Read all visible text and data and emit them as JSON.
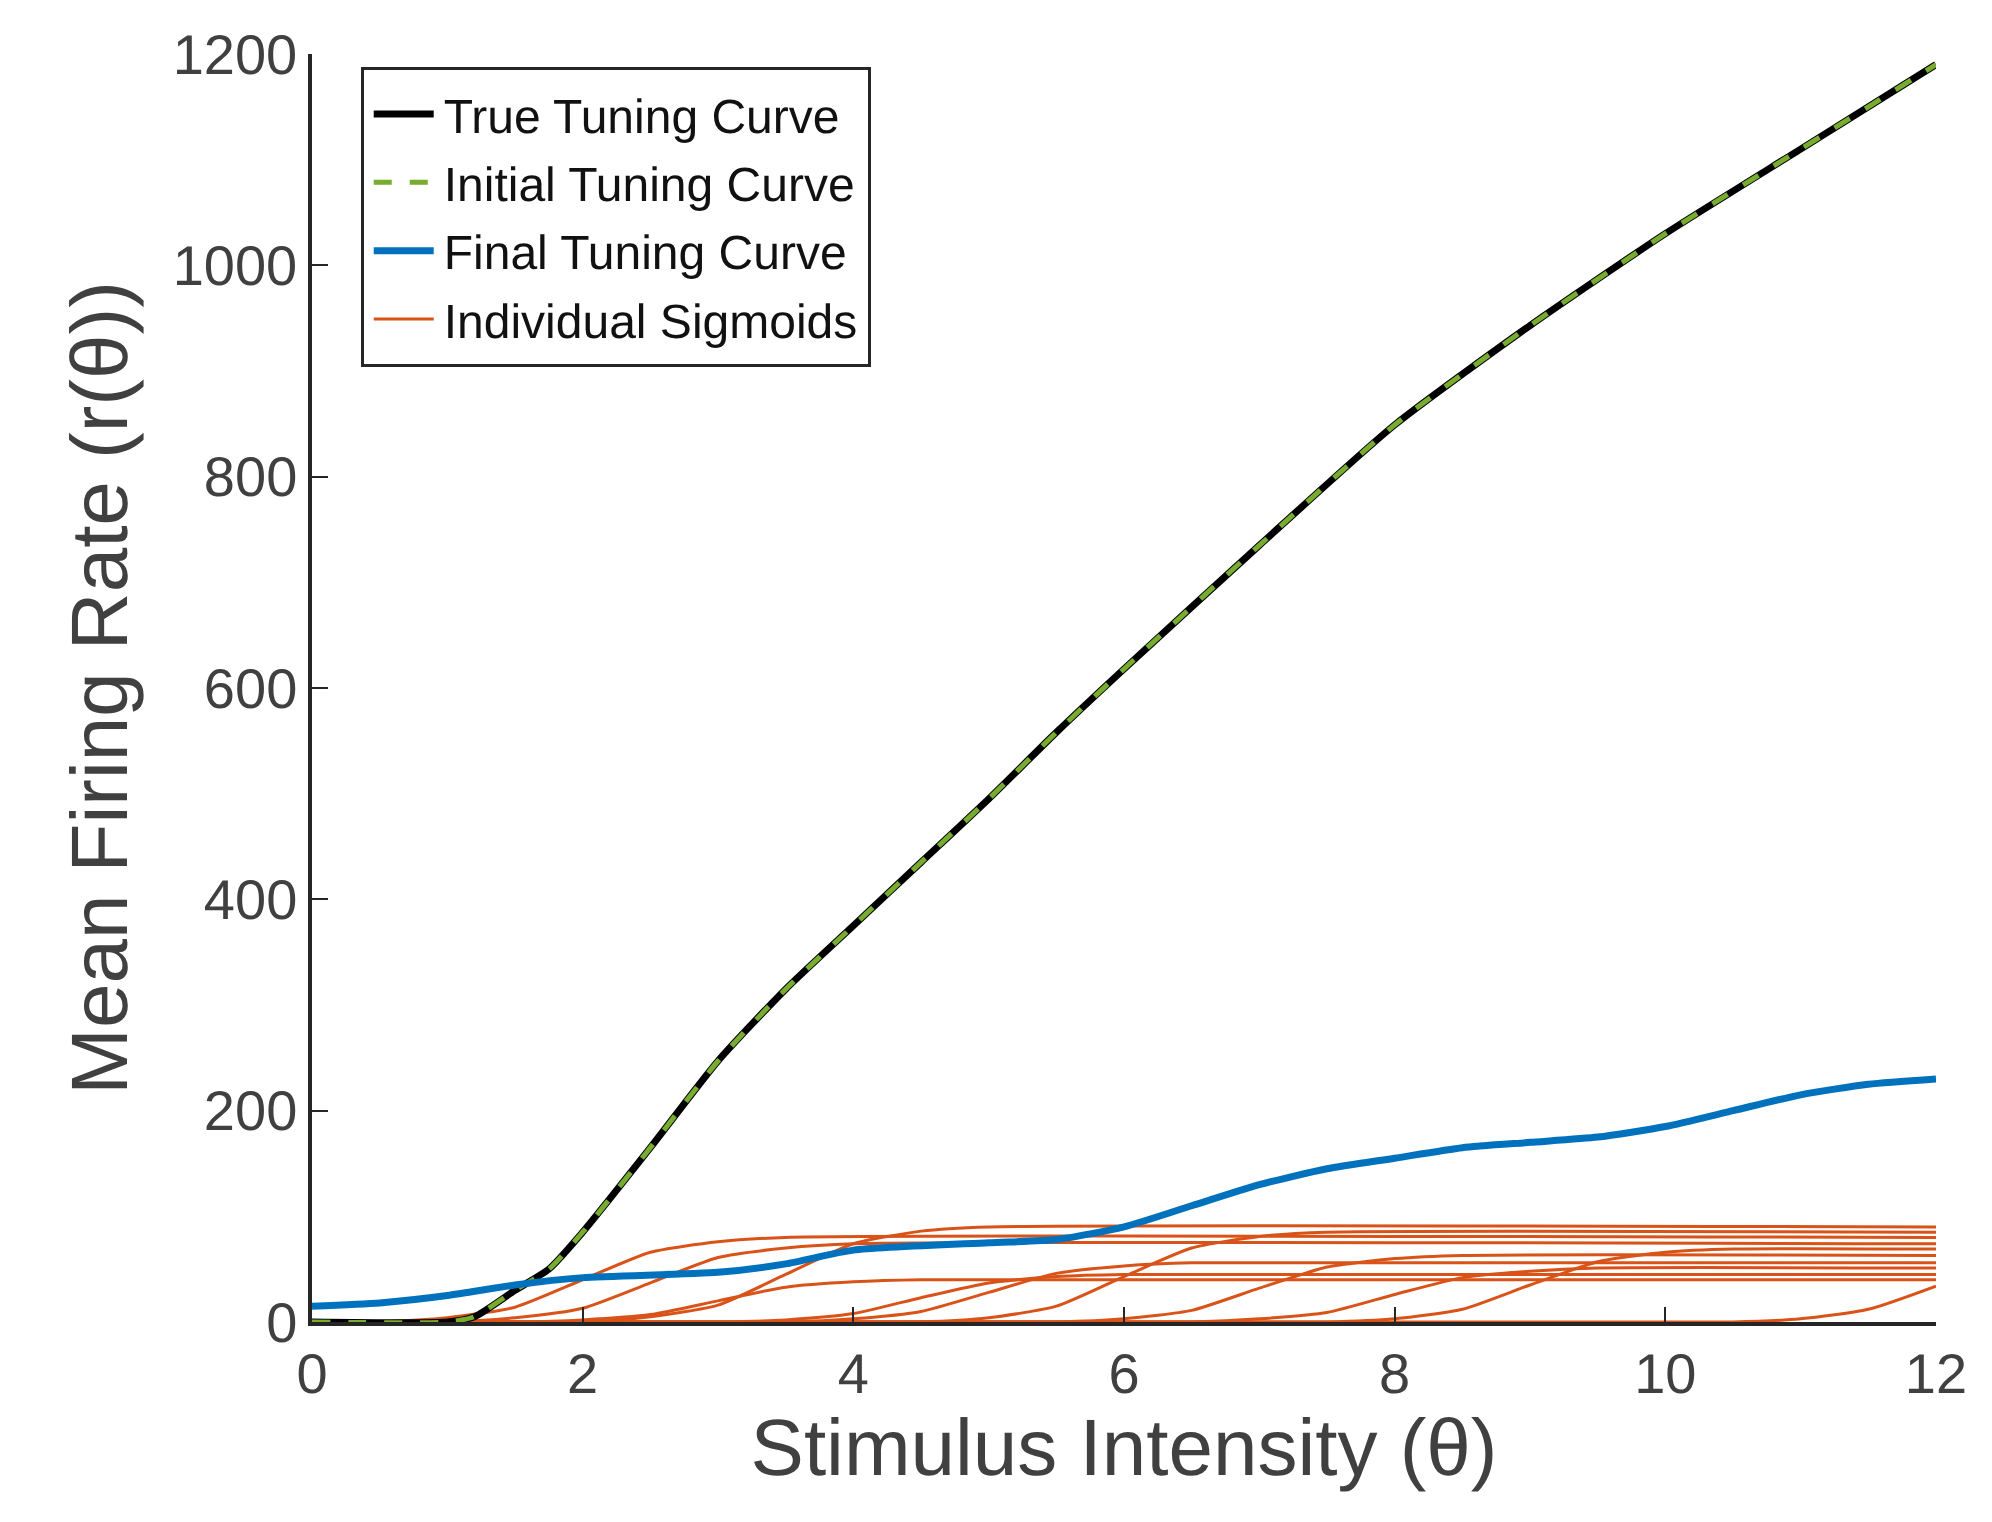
{
  "chart_data": {
    "type": "line",
    "xlabel": "Stimulus Intensity (θ)",
    "ylabel": "Mean Firing Rate (r(θ))",
    "xlim": [
      0,
      12
    ],
    "xticks": [
      0,
      2,
      4,
      6,
      8,
      10,
      12
    ],
    "ylim": [
      0,
      1200
    ],
    "yticks": [
      0,
      200,
      400,
      600,
      800,
      1000,
      1200
    ],
    "legend": "top left",
    "marker": "none",
    "series": [
      {
        "name": "True Tuning Curve",
        "color": "#000000",
        "line_style": "solid",
        "x": [
          0,
          1,
          1.2,
          1.5,
          1.75,
          2,
          2.5,
          3,
          3.5,
          4,
          4.5,
          5,
          5.5,
          6,
          7,
          8,
          9,
          10,
          11,
          12
        ],
        "values": [
          0,
          0,
          5,
          30,
          50,
          85,
          165,
          247,
          315,
          375,
          435,
          495,
          558,
          618,
          735,
          849,
          943,
          1030,
          1110,
          1190
        ]
      },
      {
        "name": "Initial Tuning Curve",
        "color": "#77ac30",
        "line_style": "dashed",
        "x": [
          0,
          1,
          1.2,
          1.5,
          1.75,
          2,
          2.5,
          3,
          3.5,
          4,
          4.5,
          5,
          5.5,
          6,
          7,
          8,
          9,
          10,
          11,
          12
        ],
        "values": [
          0,
          0,
          5,
          30,
          50,
          85,
          165,
          247,
          315,
          375,
          435,
          495,
          558,
          618,
          735,
          849,
          943,
          1030,
          1110,
          1190
        ]
      },
      {
        "name": "Final Tuning Curve",
        "color": "#0072bd",
        "line_style": "solid",
        "x": [
          0,
          0.5,
          1,
          1.5,
          2,
          3,
          3.5,
          4,
          5,
          5.5,
          6,
          6.5,
          7,
          7.5,
          8,
          8.5,
          9,
          9.5,
          10,
          10.5,
          11,
          11.5,
          12
        ],
        "values": [
          15,
          18,
          25,
          35,
          42,
          47,
          55,
          68,
          75,
          78,
          90,
          110,
          130,
          145,
          155,
          165,
          170,
          175,
          185,
          200,
          215,
          225,
          230
        ]
      },
      {
        "name": "Individual Sigmoids",
        "color": "#d95319",
        "x": [
          0,
          0.5,
          1,
          1.5,
          2,
          2.5,
          3,
          3.5,
          12
        ],
        "values": [
          0,
          0,
          4,
          14,
          40,
          66,
          76,
          80,
          80
        ]
      },
      {
        "color": "#d95319",
        "x": [
          0,
          1,
          1.5,
          2,
          2.5,
          3,
          3.5,
          4,
          12
        ],
        "values": [
          0,
          0,
          4,
          13,
          37,
          61,
          70,
          74,
          74
        ]
      },
      {
        "color": "#d95319",
        "x": [
          0,
          1.5,
          2,
          2.5,
          3,
          3.5,
          4,
          4.5,
          12
        ],
        "values": [
          0,
          0,
          2,
          7,
          20,
          33,
          38,
          40,
          40
        ]
      },
      {
        "color": "#d95319",
        "x": [
          0,
          2,
          2.5,
          3,
          3.5,
          4,
          4.5,
          5,
          12
        ],
        "values": [
          0,
          0,
          5,
          16,
          45,
          74,
          86,
          90,
          90
        ]
      },
      {
        "color": "#d95319",
        "x": [
          0,
          3,
          3.5,
          4,
          4.5,
          5,
          5.5,
          6,
          12
        ],
        "values": [
          0,
          0,
          2,
          8,
          23,
          37,
          43,
          45,
          45
        ]
      },
      {
        "color": "#d95319",
        "x": [
          0,
          3.5,
          4,
          4.5,
          5,
          5.5,
          6,
          6.5,
          12
        ],
        "values": [
          0,
          0,
          3,
          10,
          28,
          46,
          53,
          56,
          56
        ]
      },
      {
        "color": "#d95319",
        "x": [
          0,
          4.5,
          5,
          5.5,
          6,
          6.5,
          7,
          7.5,
          12
        ],
        "values": [
          0,
          0,
          4,
          15,
          43,
          70,
          81,
          85,
          85
        ]
      },
      {
        "color": "#d95319",
        "x": [
          0,
          5.5,
          6,
          6.5,
          7,
          7.5,
          8,
          8.5,
          12
        ],
        "values": [
          0,
          0,
          3,
          11,
          32,
          52,
          60,
          63,
          63
        ]
      },
      {
        "color": "#d95319",
        "x": [
          0,
          6.5,
          7,
          7.5,
          8,
          8.5,
          9,
          9.5,
          12
        ],
        "values": [
          0,
          0,
          3,
          9,
          26,
          42,
          48,
          51,
          51
        ]
      },
      {
        "color": "#d95319",
        "x": [
          0,
          7.5,
          8,
          8.5,
          9,
          9.5,
          10,
          10.5,
          12
        ],
        "values": [
          0,
          0,
          3,
          12,
          35,
          57,
          66,
          69,
          69
        ]
      },
      {
        "color": "#d95319",
        "x": [
          0,
          10.5,
          11,
          11.5,
          12
        ],
        "values": [
          0,
          0,
          3,
          12,
          34
        ]
      }
    ]
  }
}
